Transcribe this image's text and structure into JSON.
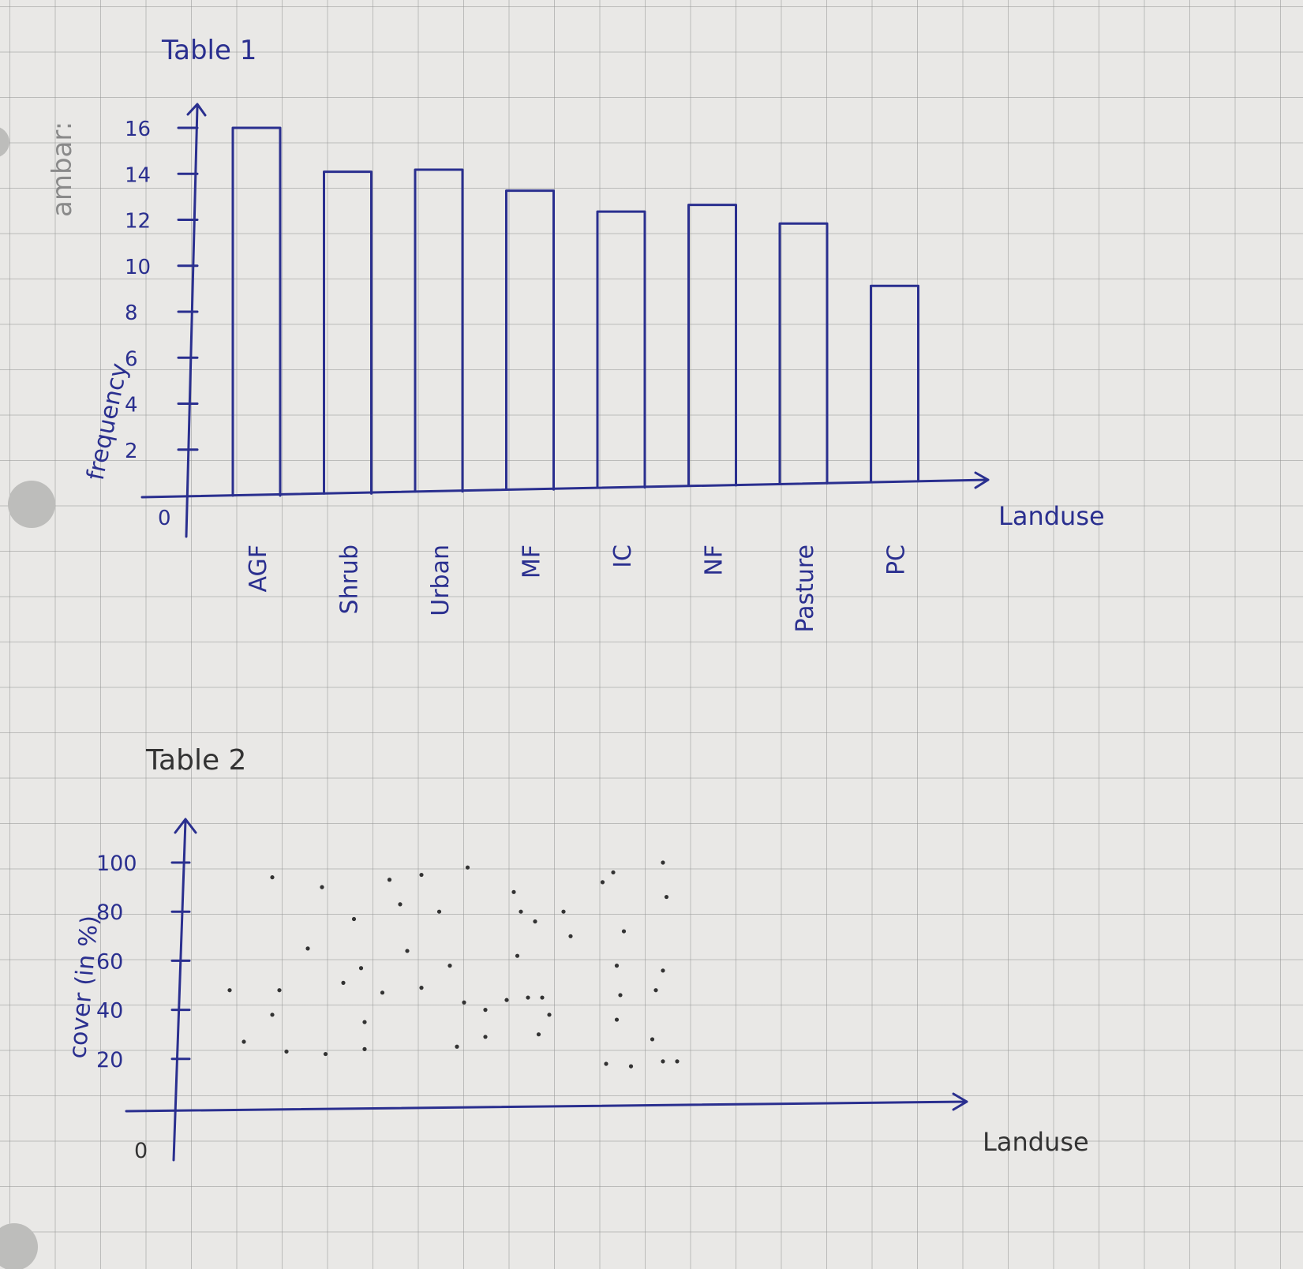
{
  "margin_label": "ambar:",
  "chart_data": [
    {
      "type": "bar",
      "title": "Table 1",
      "xlabel": "Landuse",
      "ylabel": "frequency",
      "categories": [
        "AGF",
        "Shrub",
        "Urban",
        "MF",
        "IC",
        "NF",
        "Pasture",
        "PC"
      ],
      "values": [
        16,
        14,
        14,
        13,
        12,
        12.2,
        11.3,
        8.5
      ],
      "yticks": [
        "0",
        "2",
        "4",
        "6",
        "8",
        "10",
        "12",
        "14",
        "16"
      ],
      "ylim": [
        0,
        17
      ],
      "color": "#2a2f8f"
    },
    {
      "type": "scatter",
      "title": "Table 2",
      "xlabel": "Landuse",
      "ylabel": "cover (in %)",
      "yticks": [
        "0",
        "20",
        "40",
        "60",
        "80",
        "100"
      ],
      "ylim": [
        0,
        105
      ],
      "points": [
        [
          1.0,
          94
        ],
        [
          2.4,
          90
        ],
        [
          5.2,
          95
        ],
        [
          6.5,
          98
        ],
        [
          4.3,
          93
        ],
        [
          7.8,
          88
        ],
        [
          10.3,
          92
        ],
        [
          10.6,
          96
        ],
        [
          12.0,
          100
        ],
        [
          3.3,
          77
        ],
        [
          4.6,
          83
        ],
        [
          5.7,
          80
        ],
        [
          8.0,
          80
        ],
        [
          8.4,
          76
        ],
        [
          9.2,
          80
        ],
        [
          10.9,
          72
        ],
        [
          12.1,
          86
        ],
        [
          2.0,
          65
        ],
        [
          3.5,
          57
        ],
        [
          4.8,
          64
        ],
        [
          6.0,
          58
        ],
        [
          7.9,
          62
        ],
        [
          9.4,
          70
        ],
        [
          10.7,
          58
        ],
        [
          12.0,
          56
        ],
        [
          -0.2,
          48
        ],
        [
          1.2,
          48
        ],
        [
          3.0,
          51
        ],
        [
          4.1,
          47
        ],
        [
          5.2,
          49
        ],
        [
          6.4,
          43
        ],
        [
          7.6,
          44
        ],
        [
          8.2,
          45
        ],
        [
          8.6,
          45
        ],
        [
          10.8,
          46
        ],
        [
          11.8,
          48
        ],
        [
          1.0,
          38
        ],
        [
          3.6,
          35
        ],
        [
          7.0,
          40
        ],
        [
          8.8,
          38
        ],
        [
          10.7,
          36
        ],
        [
          0.2,
          27
        ],
        [
          1.4,
          23
        ],
        [
          2.5,
          22
        ],
        [
          3.6,
          24
        ],
        [
          6.2,
          25
        ],
        [
          7.0,
          29
        ],
        [
          8.5,
          30
        ],
        [
          11.7,
          28
        ],
        [
          10.4,
          18
        ],
        [
          11.1,
          17
        ],
        [
          12.0,
          19
        ],
        [
          12.4,
          19
        ]
      ],
      "color": "#333333"
    }
  ]
}
